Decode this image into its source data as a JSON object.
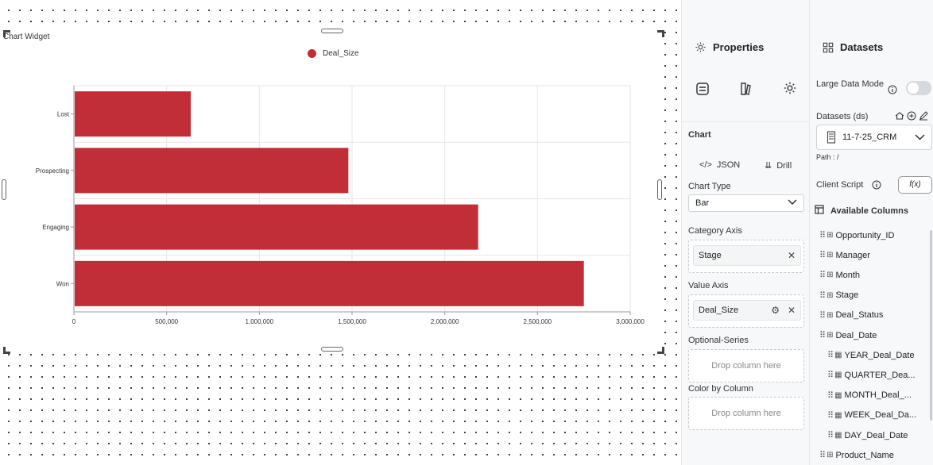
{
  "widget": {
    "title": "Chart Widget"
  },
  "chart_data": {
    "type": "bar",
    "orientation": "horizontal",
    "categories": [
      "Lost",
      "Prospecting",
      "Engaging",
      "Won"
    ],
    "series": [
      {
        "name": "Deal_Size",
        "values": [
          630000,
          1480000,
          2180000,
          2750000
        ],
        "color": "#c12e37"
      }
    ],
    "xlim": [
      0,
      3000000
    ],
    "xticks": [
      "0",
      "500,000",
      "1,000,000",
      "1,500,000",
      "2,000,000",
      "2,500,000",
      "3,000,000"
    ],
    "grid": true,
    "legend_position": "top-center"
  },
  "topbar": {
    "icons": [
      "pin-icon",
      "back-arrow-icon",
      "tree-icon",
      "cart-icon",
      "add-widget-icon",
      "database-icon",
      "close-icon"
    ]
  },
  "properties": {
    "title": "Properties",
    "section": "Chart",
    "json_label": "JSON",
    "drill_label": "Drill",
    "chart_type_label": "Chart Type",
    "chart_type_value": "Bar",
    "category_axis_label": "Category Axis",
    "category_axis_value": "Stage",
    "value_axis_label": "Value Axis",
    "value_axis_value": "Deal_Size",
    "optional_series_label": "Optional-Series",
    "optional_series_placeholder": "Drop column here",
    "color_by_label": "Color by Column",
    "color_by_placeholder": "Drop column here"
  },
  "datasets": {
    "title": "Datasets",
    "large_data_label": "Large Data Mode",
    "datasets_label": "Datasets (ds)",
    "dataset_value": "11-7-25_CRM",
    "path_label": "Path : /",
    "client_script_label": "Client Script",
    "fx_label": "f(x)",
    "available_columns_label": "Available Columns",
    "columns": [
      {
        "name": "Opportunity_ID",
        "indent": false
      },
      {
        "name": "Manager",
        "indent": false
      },
      {
        "name": "Month",
        "indent": false
      },
      {
        "name": "Stage",
        "indent": false
      },
      {
        "name": "Deal_Status",
        "indent": false
      },
      {
        "name": "Deal_Date",
        "indent": false
      },
      {
        "name": "YEAR_Deal_Date",
        "indent": true
      },
      {
        "name": "QUARTER_Dea...",
        "indent": true
      },
      {
        "name": "MONTH_Deal_...",
        "indent": true
      },
      {
        "name": "WEEK_Deal_Da...",
        "indent": true
      },
      {
        "name": "DAY_Deal_Date",
        "indent": true
      },
      {
        "name": "Product_Name",
        "indent": false
      }
    ]
  }
}
